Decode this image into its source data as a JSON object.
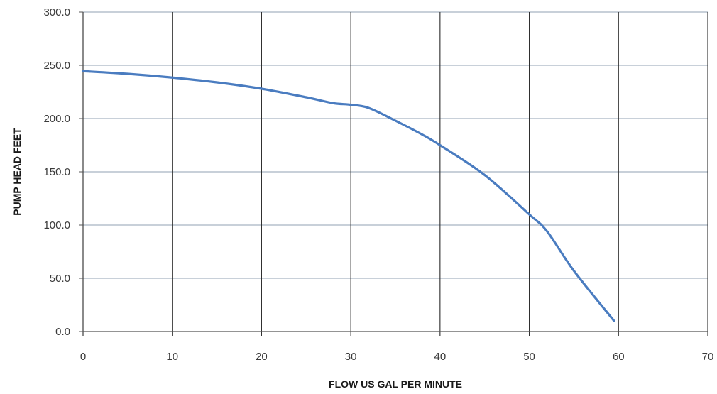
{
  "chart_data": {
    "type": "line",
    "title": "",
    "xlabel": "FLOW  US GAL PER MINUTE",
    "ylabel": "PUMP HEAD FEET",
    "xlim": [
      0,
      70
    ],
    "ylim": [
      0,
      300
    ],
    "x_ticks": [
      0,
      10,
      20,
      30,
      40,
      50,
      60,
      70
    ],
    "x_tick_labels": [
      "0",
      "10",
      "20",
      "30",
      "40",
      "50",
      "60",
      "70"
    ],
    "y_ticks": [
      0,
      50,
      100,
      150,
      200,
      250,
      300
    ],
    "y_tick_labels": [
      "0.0",
      "50.0",
      "100.0",
      "150.0",
      "200.0",
      "250.0",
      "300.0"
    ],
    "grid": true,
    "legend": "none",
    "colors": {
      "line": "#4a7cc0",
      "vgrid": "#2b2b2b",
      "hgrid": "#a8b4c2",
      "axis": "#555555"
    },
    "series": [
      {
        "x": [
          0,
          5,
          10,
          15,
          20,
          25,
          28,
          30,
          32,
          35,
          38,
          40,
          45,
          50,
          52,
          55,
          59.5
        ],
        "y": [
          244.5,
          242,
          238.5,
          234,
          228,
          220,
          214.5,
          213,
          210,
          198,
          185,
          175,
          147,
          110,
          94,
          57,
          10
        ]
      }
    ]
  }
}
